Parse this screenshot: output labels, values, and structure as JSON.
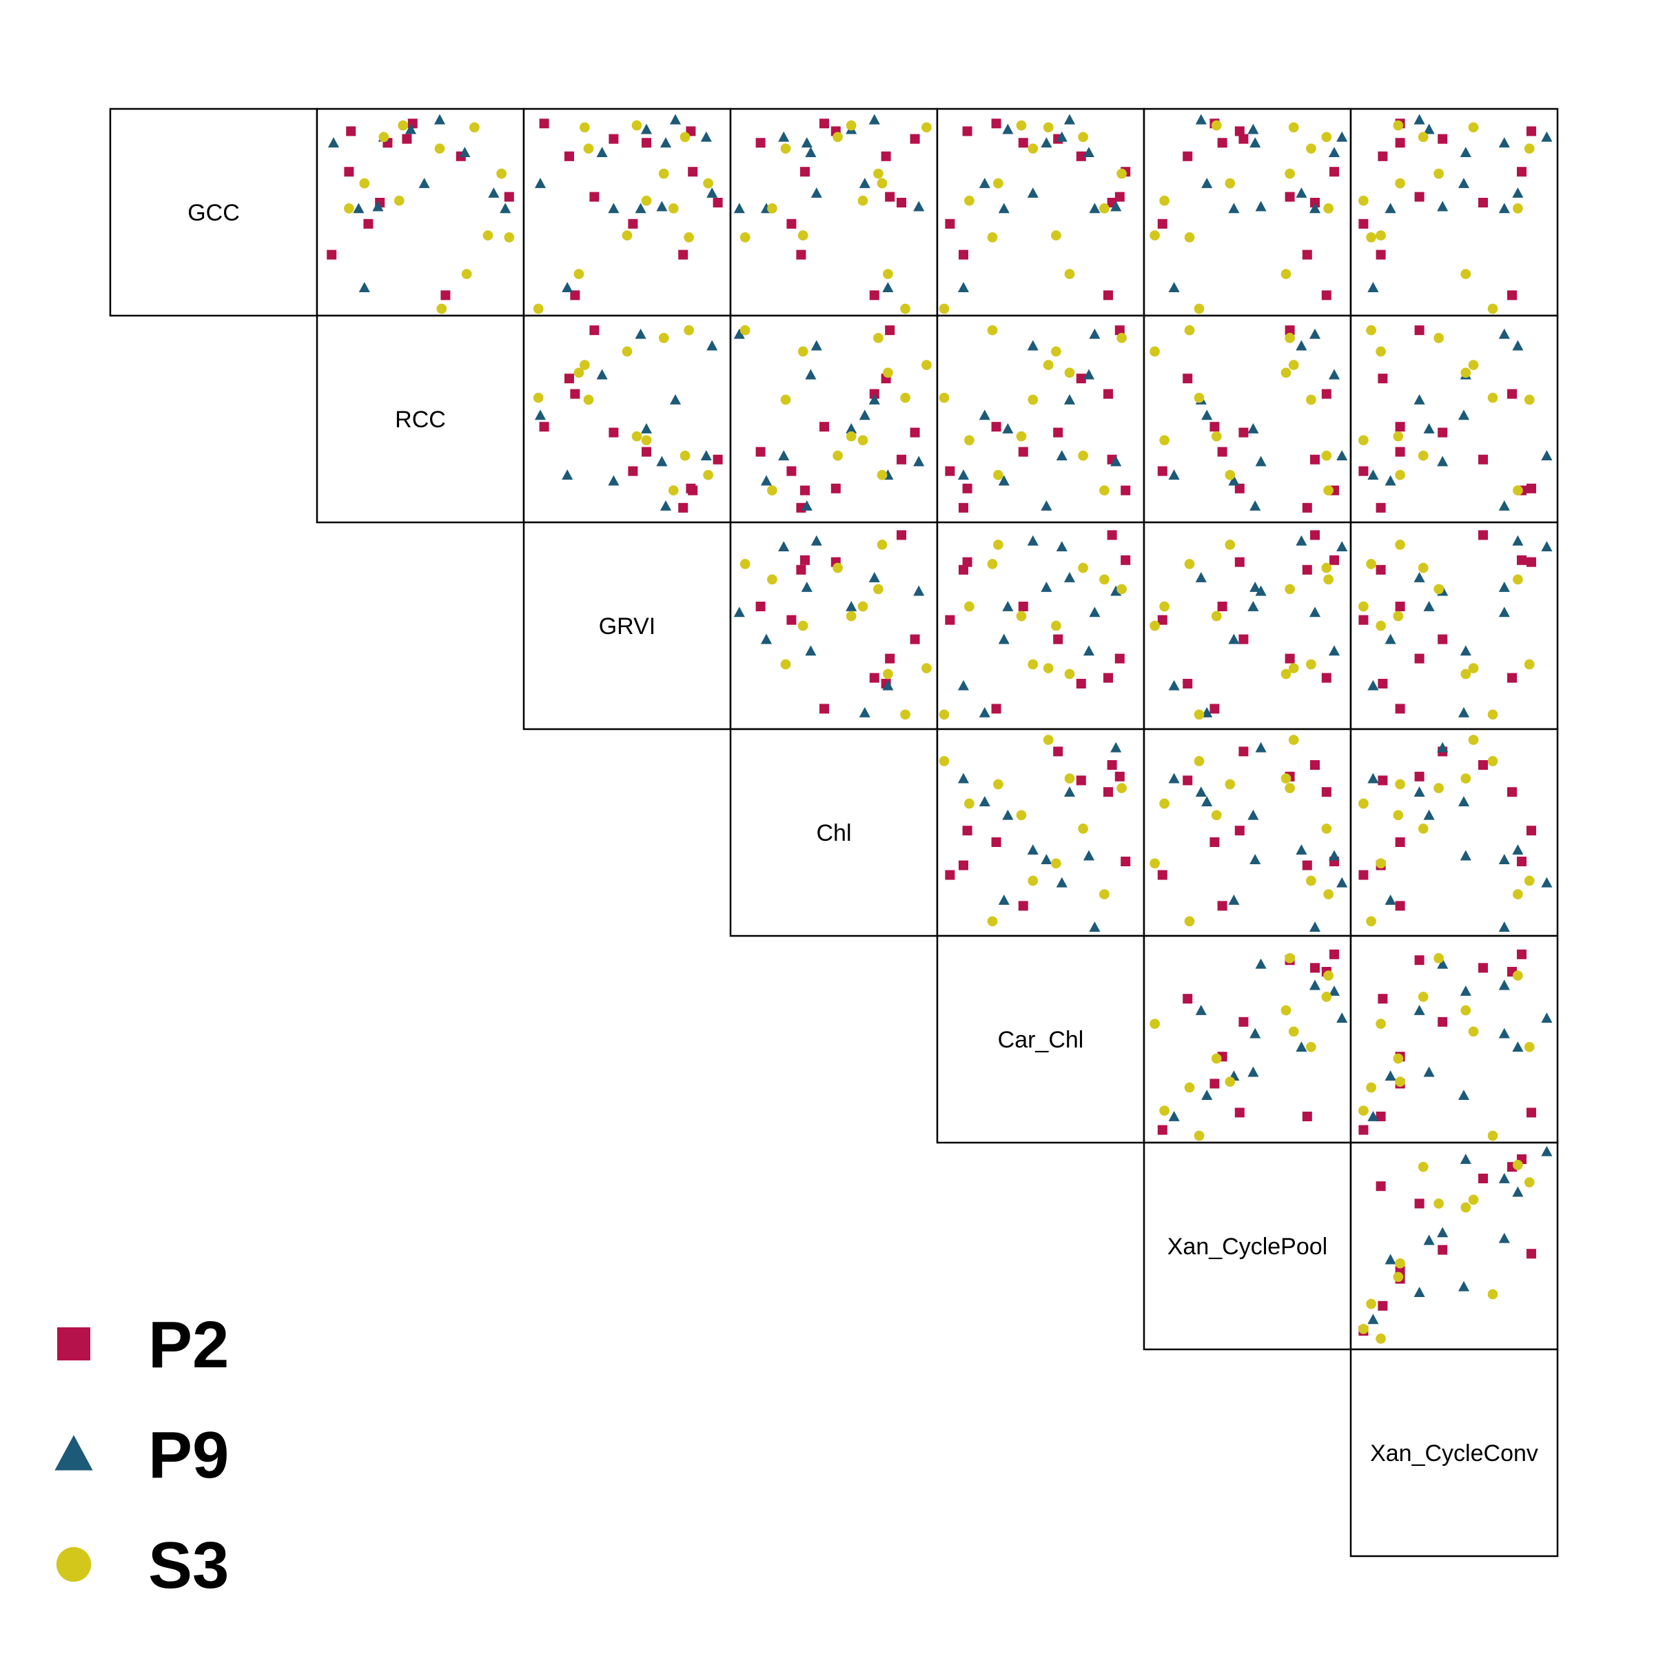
{
  "chart_data": {
    "type": "scatter",
    "layout": "scatterplot-matrix-upper",
    "variables": [
      "GCC",
      "RCC",
      "GRVI",
      "Chl",
      "Car_Chl",
      "Xan_CyclePool",
      "Xan_CycleConv"
    ],
    "legend": {
      "placement": "bottom-left",
      "entries": [
        {
          "name": "P2",
          "marker": "square",
          "color": "#B5114A"
        },
        {
          "name": "P9",
          "marker": "triangle",
          "color": "#1C5A78"
        },
        {
          "name": "S3",
          "marker": "circle",
          "color": "#D3C71C"
        }
      ]
    },
    "groups": {
      "P2": {
        "GCC": [
          0.92,
          0.07,
          0.79,
          0.96,
          0.55,
          0.88,
          0.71,
          0.86,
          0.28,
          0.44,
          0.58
        ],
        "RCC": [
          0.14,
          0.63,
          0.71,
          0.46,
          0.29,
          0.43,
          0.13,
          0.33,
          0.04,
          0.23,
          0.96
        ],
        "GRVI": [
          0.83,
          0.23,
          0.2,
          0.07,
          0.97,
          0.43,
          0.84,
          0.6,
          0.79,
          0.53,
          0.33
        ],
        "Chl": [
          0.51,
          0.71,
          0.77,
          0.45,
          0.85,
          0.92,
          0.35,
          0.12,
          0.33,
          0.28,
          0.79
        ],
        "Car_Chl": [
          0.12,
          0.85,
          0.71,
          0.27,
          0.87,
          0.59,
          0.94,
          0.41,
          0.1,
          0.03,
          0.91
        ],
        "Xan_CyclePool": [
          0.46,
          0.91,
          0.19,
          0.33,
          0.85,
          0.48,
          0.95,
          0.37,
          0.81,
          0.06,
          0.72
        ],
        "Xan_CycleConv": [
          0.9,
          0.8,
          0.13,
          0.22,
          0.65,
          0.44,
          0.85,
          0.22,
          0.12,
          0.03,
          0.32
        ]
      },
      "P9": {
        "GCC": [
          0.86,
          0.52,
          0.81,
          0.93,
          0.6,
          0.11,
          0.89,
          0.98,
          0.52,
          0.65,
          0.53
        ],
        "RCC": [
          0.05,
          0.18,
          0.73,
          0.45,
          0.88,
          0.21,
          0.31,
          0.6,
          0.94,
          0.52,
          0.28
        ],
        "GRVI": [
          0.7,
          0.43,
          0.37,
          0.6,
          0.94,
          0.19,
          0.91,
          0.75,
          0.57,
          0.05,
          0.68
        ],
        "Chl": [
          0.36,
          0.15,
          0.38,
          0.59,
          0.41,
          0.78,
          0.24,
          0.71,
          0.01,
          0.66,
          0.94
        ],
        "Car_Chl": [
          0.53,
          0.31,
          0.75,
          0.33,
          0.46,
          0.1,
          0.61,
          0.65,
          0.78,
          0.21,
          0.89
        ],
        "Xan_CyclePool": [
          0.54,
          0.43,
          0.95,
          0.53,
          0.78,
          0.12,
          0.99,
          0.26,
          0.85,
          0.29,
          0.57
        ],
        "Xan_CycleConv": [
          0.76,
          0.17,
          0.56,
          0.37,
          0.83,
          0.08,
          0.98,
          0.32,
          0.76,
          0.55,
          0.44
        ]
      },
      "S3": {
        "GCC": [
          0.95,
          0.37,
          0.18,
          0.56,
          0.89,
          0.83,
          0.65,
          0.38,
          0.52,
          0.0,
          0.7,
          0.94
        ],
        "RCC": [
          0.41,
          0.96,
          0.74,
          0.39,
          0.31,
          0.6,
          0.21,
          0.85,
          0.13,
          0.61,
          0.92,
          0.78
        ],
        "GRVI": [
          0.55,
          0.82,
          0.25,
          0.6,
          0.8,
          0.3,
          0.92,
          0.5,
          0.74,
          0.04,
          0.69,
          0.28
        ],
        "Chl": [
          0.59,
          0.04,
          0.78,
          0.65,
          0.52,
          0.25,
          0.75,
          0.34,
          0.18,
          0.87,
          0.73,
          0.98
        ],
        "Car_Chl": [
          0.4,
          0.25,
          0.65,
          0.13,
          0.72,
          0.46,
          0.28,
          0.58,
          0.83,
          0.0,
          0.92,
          0.54
        ],
        "Xan_CyclePool": [
          0.34,
          0.2,
          0.7,
          0.07,
          0.91,
          0.83,
          0.41,
          0.02,
          0.92,
          0.25,
          0.72,
          0.74
        ],
        "Xan_CycleConv": [
          0.21,
          0.07,
          0.56,
          0.03,
          0.34,
          0.89,
          0.22,
          0.12,
          0.83,
          0.7,
          0.42,
          0.6
        ]
      }
    }
  }
}
